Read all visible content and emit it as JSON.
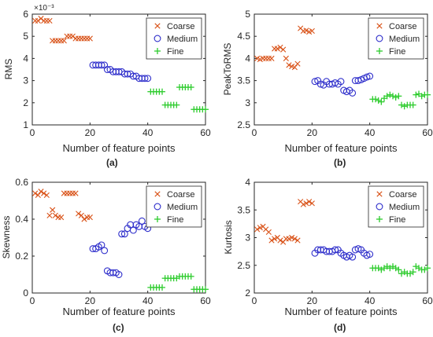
{
  "figure": {
    "background": "#ffffff",
    "axis_color": "#262626"
  },
  "chart_data": [
    {
      "type": "scatter",
      "panel_label": "(a)",
      "xlabel": "Number of feature points",
      "ylabel": "RMS",
      "exponent_label": "×10⁻³",
      "xlim": [
        0,
        60
      ],
      "ylim": [
        1,
        6
      ],
      "xticks": [
        0,
        20,
        40,
        60
      ],
      "xtick_labels": [
        "0",
        "20",
        "40",
        "60"
      ],
      "yticks": [
        1,
        2,
        3,
        4,
        5,
        6
      ],
      "ytick_labels": [
        "1",
        "2",
        "3",
        "4",
        "5",
        "6"
      ],
      "legend_position": "top-right",
      "grid": false,
      "series": [
        {
          "name": "Coarse",
          "marker": "x",
          "color": "#d95319",
          "x": [
            1,
            2,
            3,
            4,
            5,
            6,
            7,
            8,
            9,
            10,
            11,
            12,
            13,
            14,
            15,
            16,
            17,
            18,
            19,
            20
          ],
          "y": [
            5.7,
            5.7,
            5.8,
            5.7,
            5.7,
            5.7,
            4.8,
            4.8,
            4.8,
            4.8,
            4.8,
            5.0,
            5.0,
            5.0,
            4.9,
            4.9,
            4.9,
            4.9,
            4.9,
            4.9
          ]
        },
        {
          "name": "Medium",
          "marker": "o",
          "color": "#2e2ecb",
          "x": [
            21,
            22,
            23,
            24,
            25,
            26,
            27,
            28,
            29,
            30,
            31,
            32,
            33,
            34,
            35,
            36,
            37,
            38,
            39,
            40
          ],
          "y": [
            3.7,
            3.7,
            3.7,
            3.7,
            3.7,
            3.5,
            3.5,
            3.4,
            3.4,
            3.4,
            3.4,
            3.3,
            3.3,
            3.3,
            3.2,
            3.2,
            3.1,
            3.1,
            3.1,
            3.1
          ]
        },
        {
          "name": "Fine",
          "marker": "+",
          "color": "#2ecc2e",
          "x": [
            41,
            42,
            43,
            44,
            45,
            46,
            47,
            48,
            49,
            50,
            51,
            52,
            53,
            54,
            55,
            56,
            57,
            58,
            59,
            60
          ],
          "y": [
            2.5,
            2.5,
            2.5,
            2.5,
            2.5,
            1.9,
            1.9,
            1.9,
            1.9,
            1.9,
            2.7,
            2.7,
            2.7,
            2.7,
            2.7,
            1.7,
            1.7,
            1.7,
            1.7,
            1.7
          ]
        }
      ]
    },
    {
      "type": "scatter",
      "panel_label": "(b)",
      "xlabel": "Number of feature points",
      "ylabel": "PeakToRMS",
      "xlim": [
        0,
        60
      ],
      "ylim": [
        2.5,
        5
      ],
      "xticks": [
        0,
        20,
        40,
        60
      ],
      "xtick_labels": [
        "0",
        "20",
        "40",
        "60"
      ],
      "yticks": [
        2.5,
        3,
        3.5,
        4,
        4.5,
        5
      ],
      "ytick_labels": [
        "2.5",
        "3",
        "3.5",
        "4",
        "4.5",
        "5"
      ],
      "legend_position": "top-right",
      "grid": false,
      "series": [
        {
          "name": "Coarse",
          "marker": "x",
          "color": "#d95319",
          "x": [
            1,
            2,
            3,
            4,
            5,
            6,
            7,
            8,
            9,
            10,
            11,
            12,
            13,
            14,
            15,
            16,
            17,
            18,
            19,
            20
          ],
          "y": [
            4.0,
            3.98,
            4.0,
            4.0,
            4.0,
            4.0,
            4.22,
            4.22,
            4.25,
            4.2,
            4.0,
            3.85,
            3.82,
            3.8,
            3.88,
            4.68,
            4.62,
            4.63,
            4.6,
            4.62
          ]
        },
        {
          "name": "Medium",
          "marker": "o",
          "color": "#2e2ecb",
          "x": [
            21,
            22,
            23,
            24,
            25,
            26,
            27,
            28,
            29,
            30,
            31,
            32,
            33,
            34,
            35,
            36,
            37,
            38,
            39,
            40
          ],
          "y": [
            3.48,
            3.5,
            3.42,
            3.4,
            3.48,
            3.42,
            3.42,
            3.45,
            3.42,
            3.48,
            3.28,
            3.25,
            3.28,
            3.22,
            3.5,
            3.5,
            3.52,
            3.55,
            3.58,
            3.6
          ]
        },
        {
          "name": "Fine",
          "marker": "+",
          "color": "#2ecc2e",
          "x": [
            41,
            42,
            43,
            44,
            45,
            46,
            47,
            48,
            49,
            50,
            51,
            52,
            53,
            54,
            55,
            56,
            57,
            58,
            59,
            60
          ],
          "y": [
            3.08,
            3.08,
            3.05,
            3.02,
            3.1,
            3.15,
            3.18,
            3.15,
            3.12,
            3.15,
            2.95,
            2.92,
            2.95,
            2.95,
            2.95,
            3.18,
            3.2,
            3.15,
            3.18,
            3.18
          ]
        }
      ]
    },
    {
      "type": "scatter",
      "panel_label": "(c)",
      "xlabel": "Number of feature points",
      "ylabel": "Skewness",
      "xlim": [
        0,
        60
      ],
      "ylim": [
        0,
        0.6
      ],
      "xticks": [
        0,
        20,
        40,
        60
      ],
      "xtick_labels": [
        "0",
        "20",
        "40",
        "60"
      ],
      "yticks": [
        0,
        0.2,
        0.4,
        0.6
      ],
      "ytick_labels": [
        "0",
        "0.2",
        "0.4",
        "0.6"
      ],
      "legend_position": "top-right",
      "grid": false,
      "series": [
        {
          "name": "Coarse",
          "marker": "x",
          "color": "#d95319",
          "x": [
            1,
            2,
            3,
            4,
            5,
            6,
            7,
            8,
            9,
            10,
            11,
            12,
            13,
            14,
            15,
            16,
            17,
            18,
            19,
            20
          ],
          "y": [
            0.54,
            0.53,
            0.55,
            0.54,
            0.53,
            0.42,
            0.45,
            0.42,
            0.41,
            0.41,
            0.54,
            0.54,
            0.54,
            0.54,
            0.54,
            0.43,
            0.42,
            0.4,
            0.41,
            0.41
          ]
        },
        {
          "name": "Medium",
          "marker": "o",
          "color": "#2e2ecb",
          "x": [
            21,
            22,
            23,
            24,
            25,
            26,
            27,
            28,
            29,
            30,
            31,
            32,
            33,
            34,
            35,
            36,
            37,
            38,
            39,
            40
          ],
          "y": [
            0.24,
            0.24,
            0.25,
            0.26,
            0.23,
            0.12,
            0.11,
            0.11,
            0.11,
            0.1,
            0.32,
            0.32,
            0.35,
            0.37,
            0.34,
            0.37,
            0.36,
            0.39,
            0.36,
            0.35
          ]
        },
        {
          "name": "Fine",
          "marker": "+",
          "color": "#2ecc2e",
          "x": [
            41,
            42,
            43,
            44,
            45,
            46,
            47,
            48,
            49,
            50,
            51,
            52,
            53,
            54,
            55,
            56,
            57,
            58,
            59,
            60
          ],
          "y": [
            0.03,
            0.03,
            0.03,
            0.03,
            0.03,
            0.08,
            0.08,
            0.08,
            0.08,
            0.08,
            0.09,
            0.09,
            0.09,
            0.09,
            0.09,
            0.02,
            0.02,
            0.02,
            0.02,
            0.02
          ]
        }
      ]
    },
    {
      "type": "scatter",
      "panel_label": "(d)",
      "xlabel": "Number of feature points",
      "ylabel": "Kurtosis",
      "xlim": [
        0,
        60
      ],
      "ylim": [
        2,
        4
      ],
      "xticks": [
        0,
        20,
        40,
        60
      ],
      "xtick_labels": [
        "0",
        "20",
        "40",
        "60"
      ],
      "yticks": [
        2,
        2.5,
        3,
        3.5,
        4
      ],
      "ytick_labels": [
        "2",
        "2.5",
        "3",
        "3.5",
        "4"
      ],
      "legend_position": "top-right",
      "grid": false,
      "series": [
        {
          "name": "Coarse",
          "marker": "x",
          "color": "#d95319",
          "x": [
            1,
            2,
            3,
            4,
            5,
            6,
            7,
            8,
            9,
            10,
            11,
            12,
            13,
            14,
            15,
            16,
            17,
            18,
            19,
            20
          ],
          "y": [
            3.15,
            3.18,
            3.2,
            3.15,
            3.1,
            2.95,
            2.98,
            3.0,
            2.95,
            2.92,
            2.98,
            2.98,
            3.0,
            2.98,
            2.95,
            3.65,
            3.6,
            3.62,
            3.65,
            3.62
          ]
        },
        {
          "name": "Medium",
          "marker": "o",
          "color": "#2e2ecb",
          "x": [
            21,
            22,
            23,
            24,
            25,
            26,
            27,
            28,
            29,
            30,
            31,
            32,
            33,
            34,
            35,
            36,
            37,
            38,
            39,
            40
          ],
          "y": [
            2.72,
            2.78,
            2.78,
            2.78,
            2.75,
            2.75,
            2.75,
            2.78,
            2.78,
            2.72,
            2.68,
            2.65,
            2.68,
            2.65,
            2.78,
            2.8,
            2.78,
            2.72,
            2.68,
            2.7
          ]
        },
        {
          "name": "Fine",
          "marker": "+",
          "color": "#2ecc2e",
          "x": [
            41,
            42,
            43,
            44,
            45,
            46,
            47,
            48,
            49,
            50,
            51,
            52,
            53,
            54,
            55,
            56,
            57,
            58,
            59,
            60
          ],
          "y": [
            2.45,
            2.45,
            2.45,
            2.42,
            2.45,
            2.48,
            2.45,
            2.48,
            2.45,
            2.42,
            2.35,
            2.38,
            2.35,
            2.35,
            2.38,
            2.48,
            2.45,
            2.42,
            2.42,
            2.45
          ]
        }
      ]
    }
  ]
}
